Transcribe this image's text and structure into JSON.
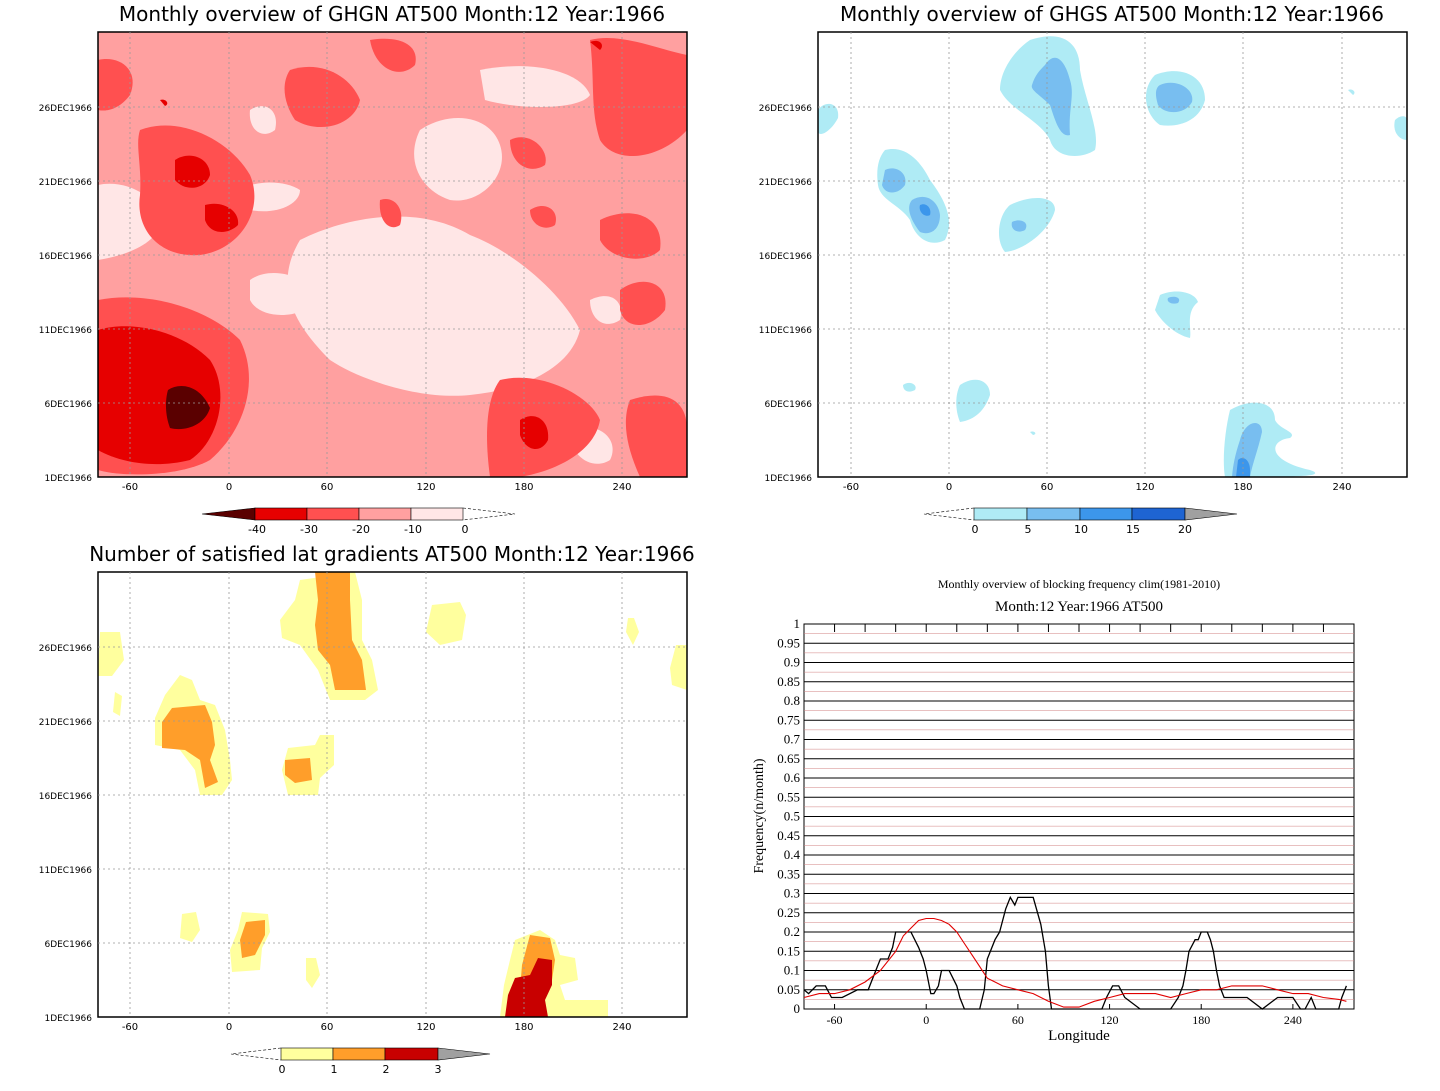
{
  "panels": [
    {
      "id": "ghgn",
      "title": "Monthly overview of GHGN AT500 Month:12 Year:1966",
      "type": "heatmap",
      "y_tick_labels": [
        "1DEC1966",
        "6DEC1966",
        "11DEC1966",
        "16DEC1966",
        "21DEC1966",
        "26DEC1966"
      ],
      "x_tick_labels": [
        "-60",
        "0",
        "60",
        "120",
        "180",
        "240"
      ],
      "colorbar": {
        "labels": [
          "-40",
          "-30",
          "-20",
          "-10",
          "0"
        ],
        "colors": [
          "#5a0000",
          "#e60000",
          "#ff5050",
          "#ffa0a0",
          "#ffe6e6"
        ]
      }
    },
    {
      "id": "ghgs",
      "title": "Monthly overview of GHGS AT500 Month:12 Year:1966",
      "type": "heatmap",
      "y_tick_labels": [
        "1DEC1966",
        "6DEC1966",
        "11DEC1966",
        "16DEC1966",
        "21DEC1966",
        "26DEC1966"
      ],
      "x_tick_labels": [
        "-60",
        "0",
        "60",
        "120",
        "180",
        "240"
      ],
      "colorbar": {
        "labels": [
          "0",
          "5",
          "10",
          "15",
          "20"
        ],
        "colors": [
          "#afebf5",
          "#78bef0",
          "#3c96eb",
          "#1e64d2",
          "#a0a0a0"
        ]
      }
    },
    {
      "id": "latgrad",
      "title": "Number of satisfied lat gradients AT500 Month:12 Year:1966",
      "type": "heatmap",
      "y_tick_labels": [
        "1DEC1966",
        "6DEC1966",
        "11DEC1966",
        "16DEC1966",
        "21DEC1966",
        "26DEC1966"
      ],
      "x_tick_labels": [
        "-60",
        "0",
        "60",
        "120",
        "180",
        "240"
      ],
      "colorbar": {
        "labels": [
          "0",
          "1",
          "2",
          "3"
        ],
        "colors": [
          "#ffff9e",
          "#ff9e2a",
          "#c80000",
          "#a0a0a0"
        ]
      }
    }
  ],
  "chart_data": {
    "type": "line",
    "title": "Monthly overview of blocking frequency clim(1981-2010)",
    "subtitle": "Month:12 Year:1966  AT500",
    "xlabel": "Longitude",
    "ylabel": "Frequency(n/month)",
    "xlim": [
      -80,
      280
    ],
    "ylim": [
      0,
      1
    ],
    "x_ticks": [
      "-60",
      "0",
      "60",
      "120",
      "180",
      "240"
    ],
    "y_ticks": [
      "0",
      "0.05",
      "0.1",
      "0.15",
      "0.2",
      "0.25",
      "0.3",
      "0.35",
      "0.4",
      "0.45",
      "0.5",
      "0.55",
      "0.6",
      "0.65",
      "0.7",
      "0.75",
      "0.8",
      "0.85",
      "0.9",
      "0.95",
      "1"
    ],
    "grid": true,
    "series": [
      {
        "color": "#000000",
        "x": [
          -80,
          -77,
          -72,
          -66,
          -62,
          -55,
          -45,
          -38,
          -33,
          -30,
          -25,
          -22,
          -20,
          -15,
          -10,
          -5,
          -2,
          0,
          3,
          5,
          8,
          10,
          12,
          15,
          20,
          22,
          25,
          30,
          35,
          38,
          40,
          42,
          45,
          48,
          52,
          55,
          58,
          60,
          62,
          65,
          70,
          75,
          78,
          80,
          82,
          84,
          86,
          88,
          90,
          95,
          100,
          105,
          110,
          115,
          118,
          122,
          126,
          130,
          140,
          150,
          155,
          160,
          165,
          168,
          170,
          172,
          176,
          178,
          180,
          182,
          184,
          186,
          188,
          190,
          192,
          195,
          200,
          210,
          220,
          230,
          240,
          245,
          248,
          252,
          255,
          260,
          265,
          270,
          272,
          275
        ],
        "values": [
          0.05,
          0.04,
          0.06,
          0.06,
          0.03,
          0.03,
          0.05,
          0.05,
          0.1,
          0.13,
          0.13,
          0.16,
          0.2,
          0.2,
          0.2,
          0.16,
          0.13,
          0.1,
          0.04,
          0.04,
          0.06,
          0.1,
          0.1,
          0.1,
          0.06,
          0.03,
          0.0,
          0.0,
          0.0,
          0.05,
          0.13,
          0.15,
          0.18,
          0.2,
          0.26,
          0.29,
          0.27,
          0.29,
          0.29,
          0.29,
          0.29,
          0.22,
          0.15,
          0.06,
          0.0,
          0.0,
          0.0,
          0.0,
          0.0,
          0.0,
          0.0,
          0.0,
          0.0,
          0.0,
          0.03,
          0.06,
          0.06,
          0.03,
          0.0,
          0.0,
          0.0,
          0.0,
          0.03,
          0.06,
          0.1,
          0.15,
          0.18,
          0.18,
          0.2,
          0.2,
          0.2,
          0.18,
          0.15,
          0.1,
          0.06,
          0.03,
          0.03,
          0.03,
          0.0,
          0.03,
          0.03,
          0.0,
          0.0,
          0.03,
          0.0,
          0.0,
          0.0,
          0.0,
          0.03,
          0.06
        ]
      },
      {
        "color": "#e00000",
        "x": [
          -80,
          -70,
          -60,
          -50,
          -40,
          -30,
          -20,
          -15,
          -10,
          -5,
          0,
          5,
          10,
          15,
          20,
          25,
          30,
          35,
          40,
          45,
          50,
          60,
          70,
          80,
          90,
          100,
          110,
          120,
          130,
          140,
          150,
          160,
          170,
          180,
          190,
          200,
          210,
          220,
          230,
          240,
          250,
          260,
          270,
          275
        ],
        "values": [
          0.03,
          0.04,
          0.04,
          0.05,
          0.07,
          0.1,
          0.15,
          0.19,
          0.21,
          0.23,
          0.235,
          0.235,
          0.23,
          0.22,
          0.2,
          0.17,
          0.14,
          0.11,
          0.08,
          0.07,
          0.06,
          0.05,
          0.04,
          0.02,
          0.005,
          0.005,
          0.02,
          0.03,
          0.04,
          0.04,
          0.04,
          0.03,
          0.04,
          0.05,
          0.05,
          0.06,
          0.06,
          0.06,
          0.05,
          0.04,
          0.04,
          0.03,
          0.025,
          0.02
        ]
      }
    ]
  }
}
